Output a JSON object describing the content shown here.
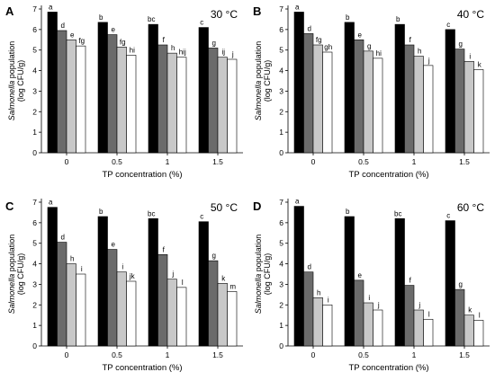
{
  "chart_data": [
    {
      "type": "bar",
      "panel": "A",
      "annotation": "30 °C",
      "categories": [
        "0",
        "0.5",
        "1",
        "1.5"
      ],
      "ylabel_italic": "Salmonella",
      "ylabel_rest": " population",
      "ylabel_unit": "(log CFU/g)",
      "xlabel": "TP concentration (%)",
      "ylim": [
        0,
        7
      ],
      "yticks": [
        "0",
        "1",
        "2",
        "3",
        "4",
        "5",
        "6",
        "7"
      ],
      "bar_colors": [
        "#000000",
        "#6b6b6b",
        "#c8c8c8",
        "#ffffff"
      ],
      "values": [
        [
          6.85,
          5.95,
          5.5,
          5.2
        ],
        [
          6.35,
          5.75,
          5.15,
          4.75
        ],
        [
          6.25,
          5.25,
          4.85,
          4.65
        ],
        [
          6.1,
          5.1,
          4.65,
          4.55
        ]
      ],
      "labels": [
        [
          "a",
          "d",
          "e",
          "fg"
        ],
        [
          "b",
          "e",
          "fg",
          "hi"
        ],
        [
          "bc",
          "f",
          "h",
          "hij"
        ],
        [
          "c",
          "g",
          "ij",
          "j"
        ]
      ]
    },
    {
      "type": "bar",
      "panel": "B",
      "annotation": "40 °C",
      "categories": [
        "0",
        "0.5",
        "1",
        "1.5"
      ],
      "ylabel_italic": "Salmonella",
      "ylabel_rest": " population",
      "ylabel_unit": "(log CFU/g)",
      "xlabel": "TP concentration (%)",
      "ylim": [
        0,
        7
      ],
      "yticks": [
        "0",
        "1",
        "2",
        "3",
        "4",
        "5",
        "6",
        "7"
      ],
      "bar_colors": [
        "#000000",
        "#6b6b6b",
        "#c8c8c8",
        "#ffffff"
      ],
      "values": [
        [
          6.85,
          5.8,
          5.25,
          4.9
        ],
        [
          6.35,
          5.5,
          4.95,
          4.6
        ],
        [
          6.25,
          5.25,
          4.7,
          4.25
        ],
        [
          6.0,
          5.05,
          4.45,
          4.05
        ]
      ],
      "labels": [
        [
          "a",
          "d",
          "fg",
          "gh"
        ],
        [
          "b",
          "e",
          "g",
          "hi"
        ],
        [
          "b",
          "f",
          "h",
          "j"
        ],
        [
          "c",
          "g",
          "i",
          "k"
        ]
      ]
    },
    {
      "type": "bar",
      "panel": "C",
      "annotation": "50 °C",
      "categories": [
        "0",
        "0.5",
        "1",
        "1.5"
      ],
      "ylabel_italic": "Salmonella",
      "ylabel_rest": " population",
      "ylabel_unit": "(log CFU/g)",
      "xlabel": "TP concentration (%)",
      "ylim": [
        0,
        7
      ],
      "yticks": [
        "0",
        "1",
        "2",
        "3",
        "4",
        "5",
        "6",
        "7"
      ],
      "bar_colors": [
        "#000000",
        "#6b6b6b",
        "#c8c8c8",
        "#ffffff"
      ],
      "values": [
        [
          6.75,
          5.05,
          4.0,
          3.5
        ],
        [
          6.3,
          4.7,
          3.6,
          3.15
        ],
        [
          6.2,
          4.45,
          3.25,
          2.85
        ],
        [
          6.05,
          4.15,
          3.05,
          2.65
        ]
      ],
      "labels": [
        [
          "a",
          "d",
          "h",
          "i"
        ],
        [
          "b",
          "e",
          "i",
          "jk"
        ],
        [
          "bc",
          "f",
          "j",
          "l"
        ],
        [
          "c",
          "g",
          "k",
          "m"
        ]
      ]
    },
    {
      "type": "bar",
      "panel": "D",
      "annotation": "60 °C",
      "categories": [
        "0",
        "0.5",
        "1",
        "1.5"
      ],
      "ylabel_italic": "Salmonella",
      "ylabel_rest": " population",
      "ylabel_unit": "(log CFU/g)",
      "xlabel": "TP concentration (%)",
      "ylim": [
        0,
        7
      ],
      "yticks": [
        "0",
        "1",
        "2",
        "3",
        "4",
        "5",
        "6",
        "7"
      ],
      "bar_colors": [
        "#000000",
        "#6b6b6b",
        "#c8c8c8",
        "#ffffff"
      ],
      "values": [
        [
          6.8,
          3.6,
          2.35,
          2.0
        ],
        [
          6.3,
          3.2,
          2.1,
          1.75
        ],
        [
          6.2,
          2.95,
          1.75,
          1.3
        ],
        [
          6.1,
          2.75,
          1.5,
          1.25
        ]
      ],
      "labels": [
        [
          "a",
          "d",
          "h",
          "i"
        ],
        [
          "b",
          "e",
          "i",
          "j"
        ],
        [
          "bc",
          "f",
          "j",
          "l"
        ],
        [
          "c",
          "g",
          "k",
          "l"
        ]
      ]
    }
  ]
}
